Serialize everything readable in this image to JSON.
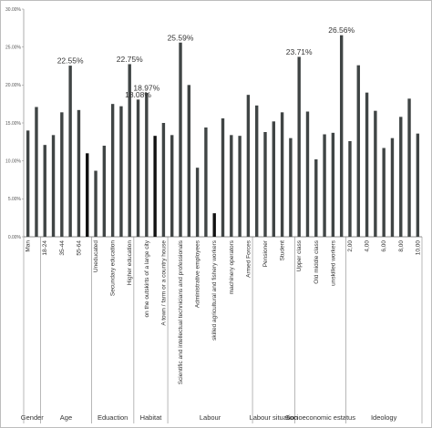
{
  "chart_data": {
    "type": "bar",
    "title": "",
    "xlabel": "",
    "ylabel": "",
    "ylim": [
      0,
      30
    ],
    "y_ticks": [
      "0.00%",
      "5.00%",
      "10.00%",
      "15.00%",
      "20.00%",
      "25.00%",
      "30.00%"
    ],
    "grid": false,
    "legend": "none",
    "bar_color": "#404545",
    "highlight_color": "#111111",
    "bars": [
      {
        "label": "Man",
        "value": 14.0,
        "group": "Gender"
      },
      {
        "label": "",
        "value": 17.1,
        "group": "Gender"
      },
      {
        "label": "18-24",
        "value": 12.1,
        "group": "Age"
      },
      {
        "label": "",
        "value": 13.4,
        "group": "Age"
      },
      {
        "label": "35-44",
        "value": 16.4,
        "group": "Age"
      },
      {
        "label": "",
        "value": 22.55,
        "group": "Age"
      },
      {
        "label": "55-64",
        "value": 16.7,
        "group": "Age"
      },
      {
        "label": "",
        "value": 11.0,
        "group": "Age",
        "highlight": true
      },
      {
        "label": "Uneducated",
        "value": 8.7,
        "group": "Eduaction"
      },
      {
        "label": "",
        "value": 12.0,
        "group": "Eduaction"
      },
      {
        "label": "Secundary education",
        "value": 17.5,
        "group": "Eduaction"
      },
      {
        "label": "",
        "value": 17.2,
        "group": "Eduaction"
      },
      {
        "label": "Higher education",
        "value": 22.75,
        "group": "Eduaction"
      },
      {
        "label": "",
        "value": 18.08,
        "group": "Habitat"
      },
      {
        "label": "on the outskirts of a large city",
        "value": 18.97,
        "group": "Habitat"
      },
      {
        "label": "",
        "value": 13.3,
        "group": "Habitat",
        "highlight": true
      },
      {
        "label": "A town / farm or a country house",
        "value": 15.0,
        "group": "Habitat"
      },
      {
        "label": "",
        "value": 13.4,
        "group": "Labour"
      },
      {
        "label": "Scientific and intellectual technicians and professionals",
        "value": 25.59,
        "group": "Labour"
      },
      {
        "label": "",
        "value": 20.0,
        "group": "Labour"
      },
      {
        "label": "Administrative employees",
        "value": 9.1,
        "group": "Labour"
      },
      {
        "label": "",
        "value": 14.4,
        "group": "Labour"
      },
      {
        "label": "skilled agricultural and fishery workers",
        "value": 3.1,
        "group": "Labour",
        "highlight": true
      },
      {
        "label": "",
        "value": 15.6,
        "group": "Labour"
      },
      {
        "label": "machinery operators",
        "value": 13.4,
        "group": "Labour"
      },
      {
        "label": "",
        "value": 13.3,
        "group": "Labour"
      },
      {
        "label": "Armed Forces",
        "value": 18.7,
        "group": "Labour"
      },
      {
        "label": "",
        "value": 17.3,
        "group": "Labour situation"
      },
      {
        "label": "Pensioner",
        "value": 13.8,
        "group": "Labour situation"
      },
      {
        "label": "",
        "value": 15.2,
        "group": "Labour situation"
      },
      {
        "label": "Student",
        "value": 16.4,
        "group": "Labour situation"
      },
      {
        "label": "",
        "value": 13.0,
        "group": "Labour situation"
      },
      {
        "label": "Upper class",
        "value": 23.71,
        "group": "Socioeconomic estatus"
      },
      {
        "label": "",
        "value": 16.5,
        "group": "Socioeconomic estatus"
      },
      {
        "label": "Old middle class",
        "value": 10.2,
        "group": "Socioeconomic estatus"
      },
      {
        "label": "",
        "value": 13.5,
        "group": "Socioeconomic estatus"
      },
      {
        "label": "unskilled workers",
        "value": 13.7,
        "group": "Socioeconomic estatus"
      },
      {
        "label": "",
        "value": 26.56,
        "group": "Socioeconomic estatus"
      },
      {
        "label": "2,00",
        "value": 12.6,
        "group": "Ideology"
      },
      {
        "label": "",
        "value": 22.6,
        "group": "Ideology"
      },
      {
        "label": "4,00",
        "value": 19.0,
        "group": "Ideology"
      },
      {
        "label": "",
        "value": 16.6,
        "group": "Ideology"
      },
      {
        "label": "6,00",
        "value": 11.7,
        "group": "Ideology"
      },
      {
        "label": "",
        "value": 13.0,
        "group": "Ideology"
      },
      {
        "label": "8,00",
        "value": 15.8,
        "group": "Ideology"
      },
      {
        "label": "",
        "value": 18.2,
        "group": "Ideology"
      },
      {
        "label": "10,00",
        "value": 13.6,
        "group": "Ideology"
      }
    ],
    "data_labels": [
      {
        "bar_index": 5,
        "text": "22.55%"
      },
      {
        "bar_index": 12,
        "text": "22.75%"
      },
      {
        "bar_index": 13,
        "text": "18.08%"
      },
      {
        "bar_index": 14,
        "text": "18.97%"
      },
      {
        "bar_index": 18,
        "text": "25.59%"
      },
      {
        "bar_index": 32,
        "text": "23.71%"
      },
      {
        "bar_index": 37,
        "text": "26.56%"
      }
    ],
    "groups": [
      {
        "name": "Gender",
        "start": 0,
        "end": 1
      },
      {
        "name": "Age",
        "start": 2,
        "end": 7
      },
      {
        "name": "Eduaction",
        "start": 8,
        "end": 12
      },
      {
        "name": "Habitat",
        "start": 13,
        "end": 16
      },
      {
        "name": "Labour",
        "start": 17,
        "end": 26
      },
      {
        "name": "Labour situation",
        "start": 27,
        "end": 31
      },
      {
        "name": "Socioeconomic estatus",
        "start": 32,
        "end": 37
      },
      {
        "name": "Ideology",
        "start": 38,
        "end": 46
      }
    ]
  }
}
